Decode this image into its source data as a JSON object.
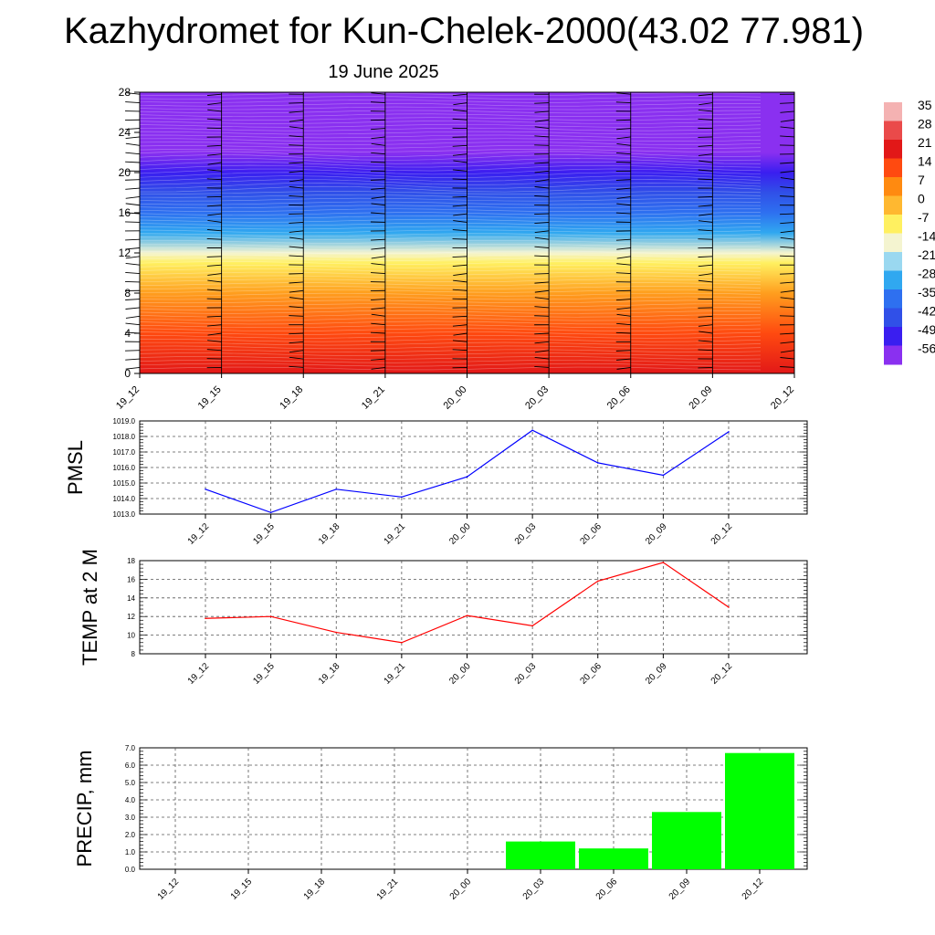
{
  "title": "Kazhydromet for Kun-Chelek-2000(43.02 77.981)",
  "subtitle": "19 June 2025",
  "time_labels": [
    "19_12",
    "19_15",
    "19_18",
    "19_21",
    "20_00",
    "20_03",
    "20_06",
    "20_09",
    "20_12"
  ],
  "chart_data": [
    {
      "type": "heatmap",
      "title": "",
      "xlabel": "",
      "ylabel": "",
      "x": [
        "19_12",
        "19_15",
        "19_18",
        "19_21",
        "20_00",
        "20_03",
        "20_06",
        "20_09",
        "20_12"
      ],
      "yticks": [
        0,
        4,
        8,
        12,
        16,
        20,
        24,
        28
      ],
      "ylim": [
        0,
        28
      ],
      "colorbar_ticks": [
        "35",
        "28",
        "21",
        "14",
        "7",
        "0",
        "-7",
        "-14",
        "-21",
        "-28",
        "-35",
        "-42",
        "-49",
        "-56"
      ],
      "colorbar_colors": [
        "#f4b2b2",
        "#ea4a4a",
        "#e21818",
        "#ff4a10",
        "#ff8a10",
        "#ffb830",
        "#fff060",
        "#f4f4d0",
        "#9ad8f0",
        "#30a8f0",
        "#2e70f0",
        "#3050e8",
        "#3a1ef0",
        "#8a30f0"
      ],
      "temperature_profile": [
        {
          "height": 0,
          "temp": 21
        },
        {
          "height": 4,
          "temp": 14
        },
        {
          "height": 8,
          "temp": 4
        },
        {
          "height": 11,
          "temp": -7
        },
        {
          "height": 12,
          "temp": -14
        },
        {
          "height": 14,
          "temp": -28
        },
        {
          "height": 16,
          "temp": -35
        },
        {
          "height": 18,
          "temp": -42
        },
        {
          "height": 20,
          "temp": -49
        },
        {
          "height": 22,
          "temp": -56
        },
        {
          "height": 28,
          "temp": -56
        }
      ]
    },
    {
      "type": "line",
      "title": "",
      "ylabel": "PMSL",
      "xlabel": "",
      "categories": [
        "19_12",
        "19_15",
        "19_18",
        "19_21",
        "20_00",
        "20_03",
        "20_06",
        "20_09",
        "20_12"
      ],
      "values": [
        1014.6,
        1013.1,
        1014.6,
        1014.1,
        1015.4,
        1018.4,
        1016.3,
        1015.5,
        1018.3
      ],
      "ylim": [
        1013.0,
        1019.0
      ],
      "yticks": [
        "1013.0",
        "1014.0",
        "1015.0",
        "1016.0",
        "1017.0",
        "1018.0",
        "1019.0"
      ],
      "color": "#0000ff",
      "grid": true
    },
    {
      "type": "line",
      "title": "",
      "ylabel": "TEMP at 2 M",
      "xlabel": "",
      "categories": [
        "19_12",
        "19_15",
        "19_18",
        "19_21",
        "20_00",
        "20_03",
        "20_06",
        "20_09",
        "20_12"
      ],
      "values": [
        11.8,
        12.0,
        10.3,
        9.2,
        12.1,
        11.0,
        15.8,
        17.8,
        13.0
      ],
      "ylim": [
        8,
        18
      ],
      "yticks": [
        "8",
        "10",
        "12",
        "14",
        "16",
        "18"
      ],
      "color": "#ff0000",
      "grid": true
    },
    {
      "type": "bar",
      "title": "",
      "ylabel": "PRECIP, mm",
      "xlabel": "",
      "categories": [
        "19_12",
        "19_15",
        "19_18",
        "19_21",
        "20_00",
        "20_03",
        "20_06",
        "20_09",
        "20_12"
      ],
      "values": [
        0,
        0,
        0,
        0,
        0,
        1.6,
        1.2,
        3.3,
        6.7
      ],
      "ylim": [
        0.0,
        7.0
      ],
      "yticks": [
        "0.0",
        "1.0",
        "2.0",
        "3.0",
        "4.0",
        "5.0",
        "6.0",
        "7.0"
      ],
      "color": "#00ff00",
      "grid": true
    }
  ]
}
